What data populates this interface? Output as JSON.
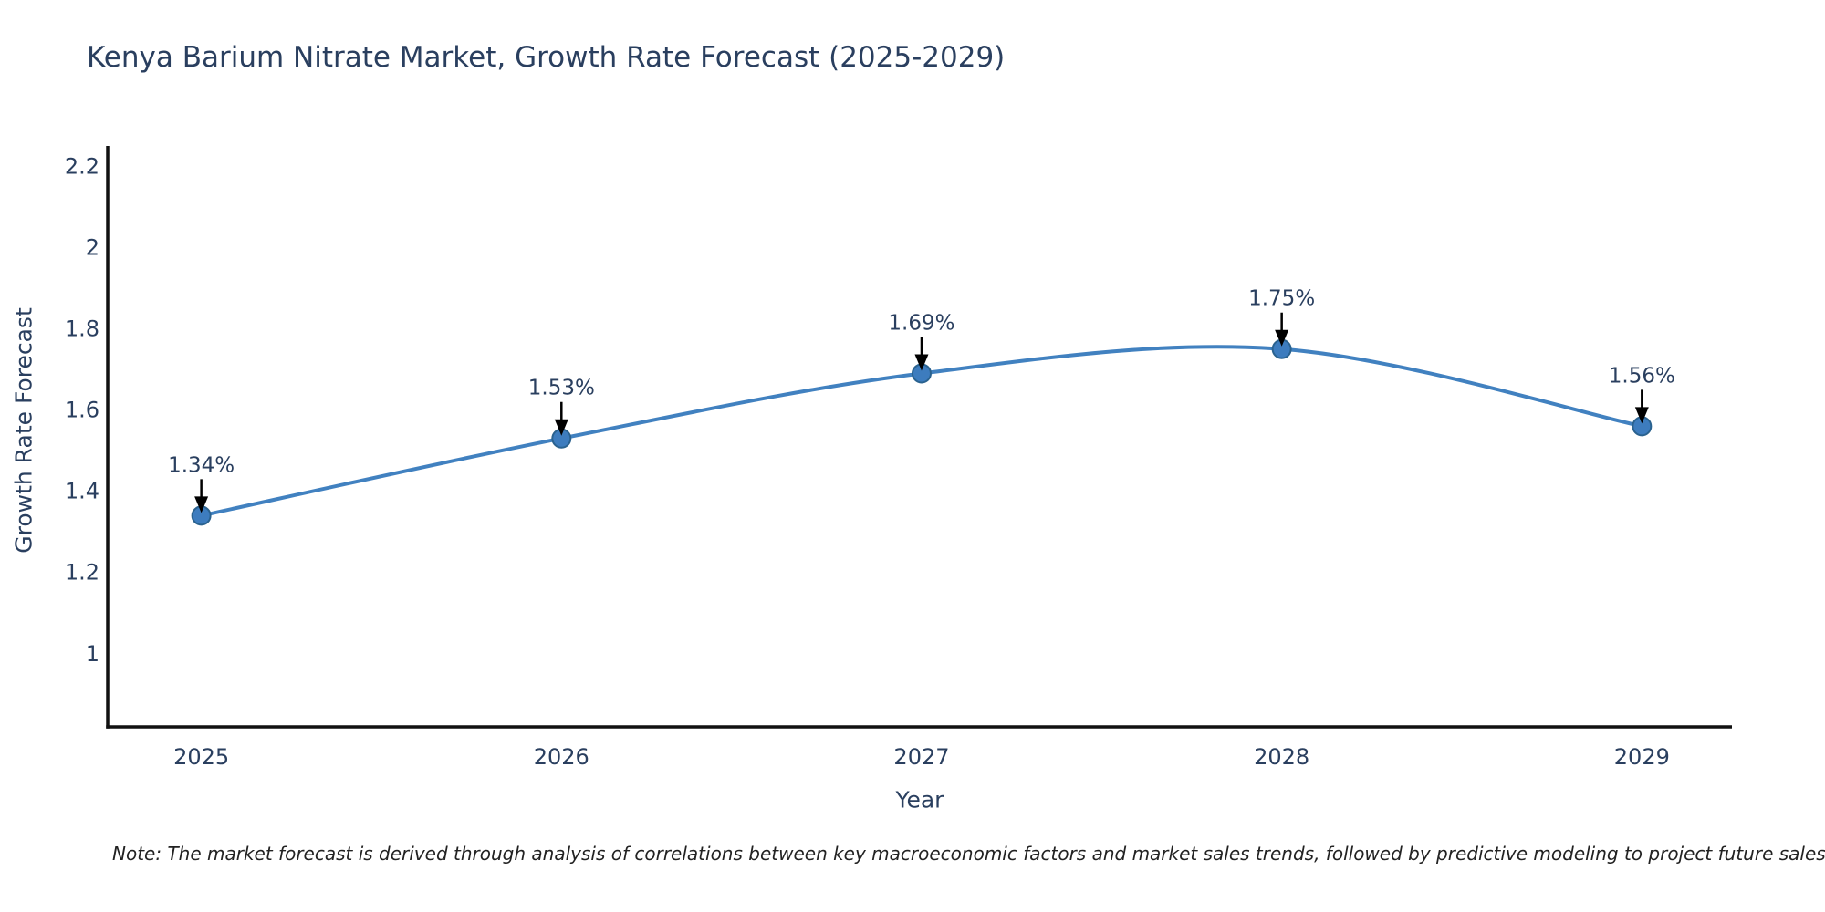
{
  "title": "Kenya Barium Nitrate Market, Growth Rate Forecast (2025-2029)",
  "footnote": "Note: The market forecast is derived through analysis of correlations between key macroeconomic factors and market sales trends, followed by predictive modeling to project future sales",
  "chart_data": {
    "type": "line",
    "title": "Kenya Barium Nitrate Market, Growth Rate Forecast (2025-2029)",
    "xlabel": "Year",
    "ylabel": "Growth Rate Forecast",
    "x": [
      2025,
      2026,
      2027,
      2028,
      2029
    ],
    "values": [
      1.34,
      1.53,
      1.69,
      1.75,
      1.56
    ],
    "point_labels": [
      "1.34%",
      "1.53%",
      "1.69%",
      "1.75%",
      "1.56%"
    ],
    "x_ticks": [
      "2025",
      "2026",
      "2027",
      "2028",
      "2029"
    ],
    "y_ticks": [
      1,
      1.2,
      1.4,
      1.6,
      1.8,
      2,
      2.2
    ],
    "xlim": [
      2024.74,
      2029.25
    ],
    "ylim": [
      0.82,
      2.25
    ],
    "line_shape": "spline",
    "grid": false,
    "legend": "none",
    "colors": {
      "line": "#4181c0",
      "marker_fill": "#3d7cbe",
      "marker_edge": "#2a628f",
      "axis_line": "#111111",
      "tick_text": "#2a3f5f",
      "annotation_text": "#2a3f5f",
      "annotation_arrow": "#000000"
    }
  }
}
